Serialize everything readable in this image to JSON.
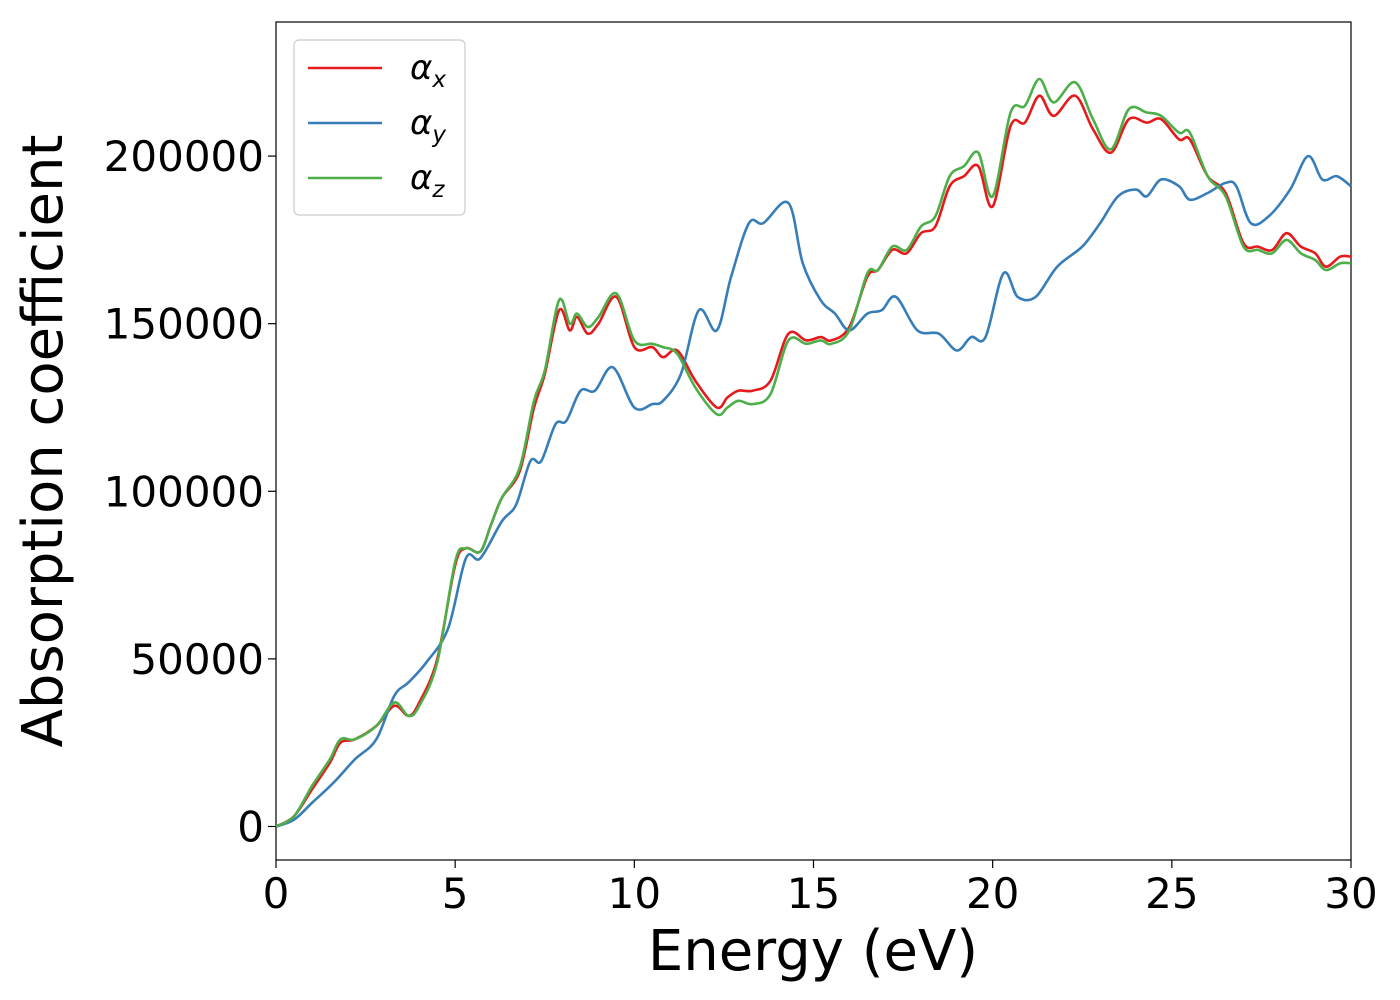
{
  "chart_data": {
    "type": "line",
    "title": "",
    "xlabel": "Energy (eV)",
    "ylabel": "Absorption coefficient",
    "xlim": [
      0,
      30
    ],
    "ylim": [
      -10000,
      240000
    ],
    "xticks": [
      0,
      5,
      10,
      15,
      20,
      25,
      30
    ],
    "yticks": [
      0,
      50000,
      100000,
      150000,
      200000
    ],
    "grid": false,
    "legend_position": "upper-left",
    "series": [
      {
        "name": "α_x",
        "legend_symbol": "α",
        "legend_subscript": "x",
        "color": "#e41a1c",
        "points": [
          [
            0,
            0
          ],
          [
            0.5,
            3000
          ],
          [
            1,
            11000
          ],
          [
            1.5,
            19000
          ],
          [
            1.8,
            25000
          ],
          [
            2.2,
            26000
          ],
          [
            2.8,
            30000
          ],
          [
            3.3,
            36000
          ],
          [
            3.7,
            33000
          ],
          [
            4.0,
            37000
          ],
          [
            4.5,
            50000
          ],
          [
            5.0,
            78000
          ],
          [
            5.3,
            83000
          ],
          [
            5.7,
            82000
          ],
          [
            6.0,
            90000
          ],
          [
            6.3,
            98000
          ],
          [
            6.8,
            106000
          ],
          [
            7.2,
            125000
          ],
          [
            7.5,
            135000
          ],
          [
            7.9,
            154000
          ],
          [
            8.2,
            148000
          ],
          [
            8.4,
            152000
          ],
          [
            8.7,
            147000
          ],
          [
            9.0,
            150000
          ],
          [
            9.5,
            158000
          ],
          [
            10.0,
            143000
          ],
          [
            10.5,
            143000
          ],
          [
            10.8,
            140000
          ],
          [
            11.2,
            142000
          ],
          [
            11.7,
            133000
          ],
          [
            12.3,
            125000
          ],
          [
            12.6,
            128000
          ],
          [
            12.9,
            130000
          ],
          [
            13.3,
            130000
          ],
          [
            13.8,
            133000
          ],
          [
            14.3,
            147000
          ],
          [
            14.8,
            145000
          ],
          [
            15.2,
            146000
          ],
          [
            15.5,
            145000
          ],
          [
            16.0,
            149000
          ],
          [
            16.5,
            164000
          ],
          [
            16.8,
            166000
          ],
          [
            17.2,
            172000
          ],
          [
            17.6,
            171000
          ],
          [
            18.0,
            177000
          ],
          [
            18.4,
            179000
          ],
          [
            18.8,
            191000
          ],
          [
            19.2,
            194000
          ],
          [
            19.6,
            197000
          ],
          [
            20.0,
            185000
          ],
          [
            20.5,
            209000
          ],
          [
            20.9,
            210000
          ],
          [
            21.3,
            218000
          ],
          [
            21.7,
            212000
          ],
          [
            22.3,
            218000
          ],
          [
            22.8,
            208000
          ],
          [
            23.3,
            201000
          ],
          [
            23.8,
            211000
          ],
          [
            24.3,
            210000
          ],
          [
            24.7,
            211000
          ],
          [
            25.2,
            205000
          ],
          [
            25.5,
            205000
          ],
          [
            26.0,
            194000
          ],
          [
            26.5,
            189000
          ],
          [
            27.0,
            174000
          ],
          [
            27.4,
            173000
          ],
          [
            27.8,
            172000
          ],
          [
            28.2,
            177000
          ],
          [
            28.6,
            173000
          ],
          [
            29.0,
            171000
          ],
          [
            29.3,
            167000
          ],
          [
            29.7,
            170000
          ],
          [
            30.0,
            170000
          ]
        ]
      },
      {
        "name": "α_y",
        "legend_symbol": "α",
        "legend_subscript": "y",
        "color": "#377eb8",
        "points": [
          [
            0,
            0
          ],
          [
            0.5,
            2000
          ],
          [
            1,
            7000
          ],
          [
            1.6,
            13000
          ],
          [
            2.2,
            20000
          ],
          [
            2.8,
            26000
          ],
          [
            3.3,
            39000
          ],
          [
            3.7,
            43000
          ],
          [
            4.2,
            49000
          ],
          [
            4.8,
            59000
          ],
          [
            5.3,
            80000
          ],
          [
            5.7,
            80000
          ],
          [
            6.3,
            91000
          ],
          [
            6.7,
            96000
          ],
          [
            7.1,
            109000
          ],
          [
            7.4,
            109000
          ],
          [
            7.8,
            120000
          ],
          [
            8.1,
            121000
          ],
          [
            8.5,
            130000
          ],
          [
            8.9,
            130000
          ],
          [
            9.4,
            137000
          ],
          [
            10.0,
            125000
          ],
          [
            10.5,
            126000
          ],
          [
            10.8,
            127000
          ],
          [
            11.3,
            135000
          ],
          [
            11.8,
            154000
          ],
          [
            12.3,
            148000
          ],
          [
            12.7,
            164000
          ],
          [
            13.2,
            180000
          ],
          [
            13.6,
            180000
          ],
          [
            14.3,
            186000
          ],
          [
            14.7,
            168000
          ],
          [
            15.2,
            157000
          ],
          [
            15.6,
            153000
          ],
          [
            16.0,
            148000
          ],
          [
            16.5,
            153000
          ],
          [
            16.9,
            154000
          ],
          [
            17.3,
            158000
          ],
          [
            17.9,
            148000
          ],
          [
            18.5,
            147000
          ],
          [
            19.0,
            142000
          ],
          [
            19.4,
            146000
          ],
          [
            19.8,
            146000
          ],
          [
            20.3,
            165000
          ],
          [
            20.7,
            158000
          ],
          [
            21.2,
            158000
          ],
          [
            21.8,
            167000
          ],
          [
            22.5,
            173000
          ],
          [
            23.0,
            180000
          ],
          [
            23.5,
            188000
          ],
          [
            24.0,
            190000
          ],
          [
            24.3,
            188000
          ],
          [
            24.7,
            193000
          ],
          [
            25.2,
            191000
          ],
          [
            25.5,
            187000
          ],
          [
            26.0,
            189000
          ],
          [
            26.5,
            192000
          ],
          [
            26.8,
            191000
          ],
          [
            27.2,
            180000
          ],
          [
            27.7,
            182000
          ],
          [
            28.3,
            190000
          ],
          [
            28.8,
            200000
          ],
          [
            29.2,
            193000
          ],
          [
            29.6,
            194000
          ],
          [
            30.0,
            191000
          ]
        ]
      },
      {
        "name": "α_z",
        "legend_symbol": "α",
        "legend_subscript": "z",
        "color": "#4daf4a",
        "points": [
          [
            0,
            0
          ],
          [
            0.5,
            3000
          ],
          [
            1,
            12000
          ],
          [
            1.5,
            20000
          ],
          [
            1.8,
            26000
          ],
          [
            2.2,
            26000
          ],
          [
            2.8,
            30000
          ],
          [
            3.3,
            37000
          ],
          [
            3.7,
            33000
          ],
          [
            4.0,
            36000
          ],
          [
            4.5,
            49000
          ],
          [
            5.0,
            79000
          ],
          [
            5.3,
            83000
          ],
          [
            5.7,
            82000
          ],
          [
            6.0,
            90000
          ],
          [
            6.3,
            98000
          ],
          [
            6.8,
            107000
          ],
          [
            7.2,
            127000
          ],
          [
            7.5,
            136000
          ],
          [
            7.9,
            157000
          ],
          [
            8.2,
            150000
          ],
          [
            8.4,
            153000
          ],
          [
            8.7,
            149000
          ],
          [
            9.0,
            152000
          ],
          [
            9.5,
            159000
          ],
          [
            10.0,
            145000
          ],
          [
            10.5,
            144000
          ],
          [
            10.8,
            143000
          ],
          [
            11.2,
            141000
          ],
          [
            11.7,
            131000
          ],
          [
            12.3,
            123000
          ],
          [
            12.6,
            125000
          ],
          [
            12.9,
            127000
          ],
          [
            13.3,
            126000
          ],
          [
            13.8,
            129000
          ],
          [
            14.3,
            145000
          ],
          [
            14.8,
            144000
          ],
          [
            15.2,
            145000
          ],
          [
            15.5,
            144000
          ],
          [
            16.0,
            148000
          ],
          [
            16.5,
            165000
          ],
          [
            16.8,
            166000
          ],
          [
            17.2,
            173000
          ],
          [
            17.6,
            172000
          ],
          [
            18.0,
            179000
          ],
          [
            18.4,
            182000
          ],
          [
            18.8,
            194000
          ],
          [
            19.2,
            197000
          ],
          [
            19.6,
            201000
          ],
          [
            20.0,
            188000
          ],
          [
            20.5,
            213000
          ],
          [
            20.9,
            215000
          ],
          [
            21.3,
            223000
          ],
          [
            21.7,
            216000
          ],
          [
            22.3,
            222000
          ],
          [
            22.8,
            211000
          ],
          [
            23.3,
            202000
          ],
          [
            23.8,
            214000
          ],
          [
            24.3,
            213000
          ],
          [
            24.7,
            212000
          ],
          [
            25.2,
            207000
          ],
          [
            25.5,
            207000
          ],
          [
            26.0,
            194000
          ],
          [
            26.5,
            188000
          ],
          [
            27.0,
            173000
          ],
          [
            27.4,
            172000
          ],
          [
            27.8,
            171000
          ],
          [
            28.2,
            175000
          ],
          [
            28.6,
            171000
          ],
          [
            29.0,
            169000
          ],
          [
            29.3,
            166000
          ],
          [
            29.7,
            168000
          ],
          [
            30.0,
            168000
          ]
        ]
      }
    ]
  }
}
